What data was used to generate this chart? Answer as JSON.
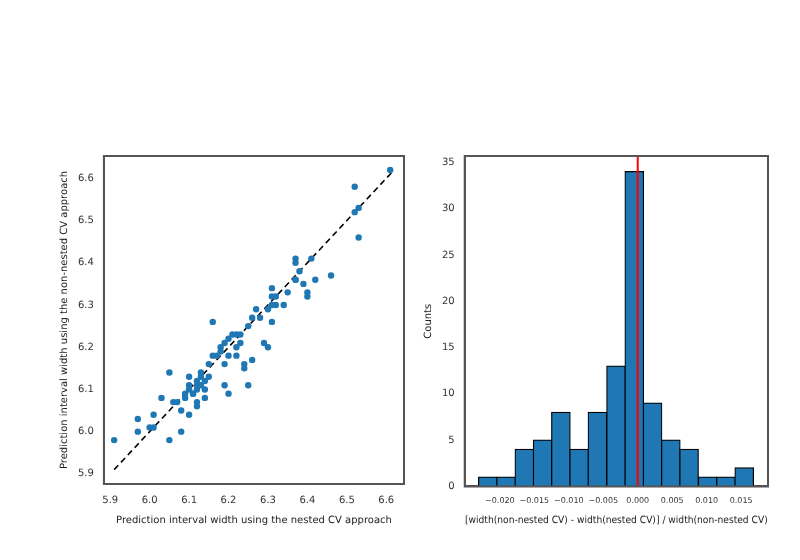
{
  "chart_data": [
    {
      "type": "scatter",
      "xlabel": "Prediction interval width using the nested CV approach",
      "ylabel": "Prediction interval width using the non-nested CV approach",
      "marker": "circle",
      "grid": false,
      "legend": false,
      "xlim": [
        5.884,
        6.645
      ],
      "ylim": [
        5.876,
        6.653
      ],
      "xticks": [
        5.9,
        {
          "value": 6,
          "label": "6.0"
        },
        6.1,
        6.2,
        6.3,
        6.4,
        6.5,
        6.6
      ],
      "yticks": [
        5.9,
        {
          "value": 6,
          "label": "6.0"
        },
        6.1,
        6.2,
        6.3,
        6.4,
        6.5,
        6.6
      ],
      "series": [
        {
          "type": "scatter",
          "color": "#1f77b4",
          "x": [
            5.91,
            5.97,
            5.97,
            6.01,
            6.01,
            6.0,
            6.03,
            6.05,
            6.05,
            6.06,
            6.07,
            6.08,
            6.08,
            6.09,
            6.09,
            6.1,
            6.1,
            6.1,
            6.11,
            6.11,
            6.12,
            6.12,
            6.12,
            6.12,
            6.1,
            6.13,
            6.13,
            6.13,
            6.14,
            6.14,
            6.15,
            6.14,
            6.12,
            6.15,
            6.16,
            6.16,
            6.17,
            6.18,
            6.18,
            6.19,
            6.19,
            6.2,
            6.2,
            6.19,
            6.2,
            6.21,
            6.22,
            6.22,
            6.22,
            6.23,
            6.23,
            6.24,
            6.25,
            6.24,
            6.25,
            6.26,
            6.26,
            6.27,
            6.28,
            6.29,
            6.3,
            6.3,
            6.31,
            6.31,
            6.31,
            6.31,
            6.32,
            6.32,
            6.34,
            6.35,
            6.37,
            6.37,
            6.37,
            6.37,
            6.38,
            6.39,
            6.4,
            6.4,
            6.41,
            6.42,
            6.46,
            6.52,
            6.52,
            6.53,
            6.53,
            6.61
          ],
          "values": [
            5.98,
            6.0,
            6.03,
            6.04,
            6.01,
            6.01,
            6.08,
            6.14,
            5.98,
            6.07,
            6.07,
            6.05,
            6.0,
            6.08,
            6.09,
            6.13,
            6.11,
            6.1,
            6.09,
            6.09,
            6.11,
            6.12,
            6.1,
            6.06,
            6.04,
            6.13,
            6.14,
            6.11,
            6.1,
            6.12,
            6.13,
            6.08,
            6.07,
            6.16,
            6.26,
            6.18,
            6.18,
            6.19,
            6.2,
            6.16,
            6.11,
            6.09,
            6.18,
            6.21,
            6.22,
            6.23,
            6.2,
            6.18,
            6.23,
            6.21,
            6.23,
            6.16,
            6.11,
            6.15,
            6.25,
            6.27,
            6.17,
            6.29,
            6.27,
            6.21,
            6.2,
            6.29,
            6.34,
            6.32,
            6.26,
            6.3,
            6.32,
            6.3,
            6.3,
            6.33,
            6.36,
            6.41,
            6.36,
            6.4,
            6.38,
            6.35,
            6.33,
            6.32,
            6.41,
            6.36,
            6.37,
            6.58,
            6.52,
            6.53,
            6.46,
            6.62
          ]
        },
        {
          "type": "line",
          "color": "#000000",
          "line_style": "dashed",
          "marker": "none",
          "x": [
            5.91,
            6.62
          ],
          "values": [
            5.91,
            6.62
          ]
        }
      ]
    },
    {
      "type": "histogram",
      "xlabel": "[width(non-nested CV) - width(nested CV)] / width(non-nested CV)",
      "ylabel": "Counts",
      "grid": false,
      "legend": false,
      "color": "#1f77b4",
      "bins": [
        -0.0231,
        -0.0204,
        -0.0178,
        -0.0151,
        -0.0125,
        -0.0098,
        -0.0072,
        -0.0045,
        -0.0018,
        0.0008,
        0.0035,
        0.0061,
        0.0088,
        0.0115,
        0.0141,
        0.0168
      ],
      "values": [
        1,
        1,
        4,
        5,
        8,
        4,
        8,
        13,
        34,
        9,
        5,
        4,
        1,
        1,
        2
      ],
      "xlim": [
        -0.0251,
        0.0189
      ],
      "ylim": [
        0,
        35.7
      ],
      "xticks": [
        {
          "value": -0.02,
          "label": "−0.020"
        },
        {
          "value": -0.015,
          "label": "−0.015"
        },
        {
          "value": -0.01,
          "label": "−0.010"
        },
        {
          "value": -0.005,
          "label": "−0.005"
        },
        {
          "value": 0,
          "label": "0.000"
        },
        {
          "value": 0.005,
          "label": "0.005"
        },
        {
          "value": 0.01,
          "label": "0.010"
        },
        {
          "value": 0.015,
          "label": "0.015"
        }
      ],
      "yticks": [
        0,
        5,
        10,
        15,
        20,
        25,
        30,
        35
      ],
      "ref_lines": [
        {
          "axis": "x",
          "value": 0,
          "color": "#ff0000"
        }
      ]
    }
  ]
}
